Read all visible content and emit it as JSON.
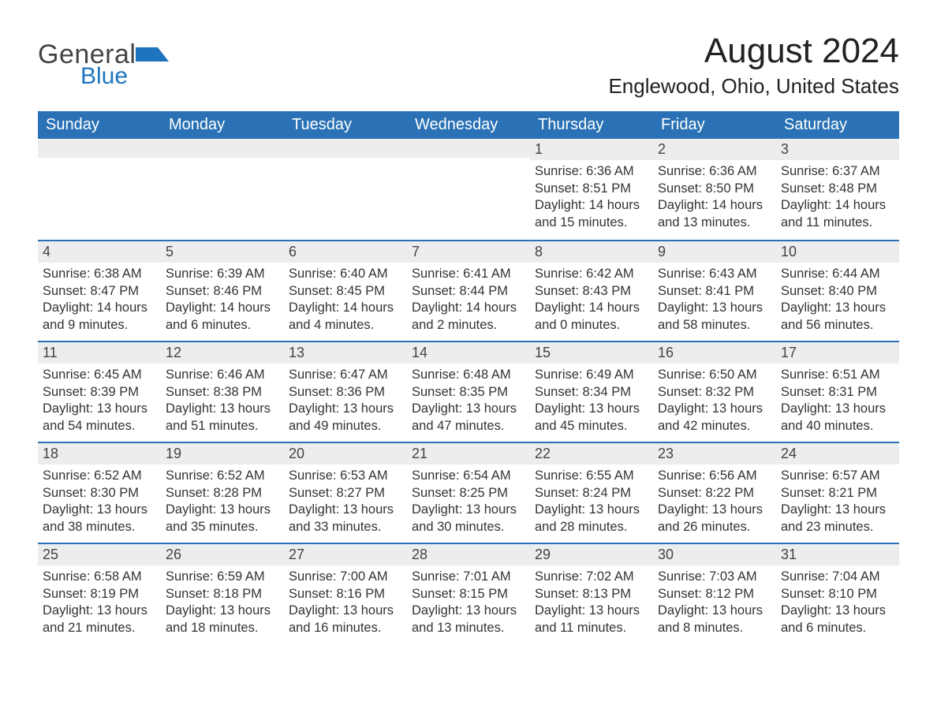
{
  "brand": {
    "part1": "General",
    "part2": "Blue",
    "accent": "#1f74bf",
    "shape_color": "#1f74bf"
  },
  "title": "August 2024",
  "location": "Englewood, Ohio, United States",
  "colors": {
    "header_bg": "#2a72b5",
    "header_text": "#ffffff",
    "daynum_bg": "#ededed",
    "week_border": "#2a72b5",
    "body_text": "#333333",
    "page_bg": "#ffffff"
  },
  "weekday_headers": [
    "Sunday",
    "Monday",
    "Tuesday",
    "Wednesday",
    "Thursday",
    "Friday",
    "Saturday"
  ],
  "weeks": [
    [
      {
        "day": "",
        "sunrise": "",
        "sunset": "",
        "daylight": ""
      },
      {
        "day": "",
        "sunrise": "",
        "sunset": "",
        "daylight": ""
      },
      {
        "day": "",
        "sunrise": "",
        "sunset": "",
        "daylight": ""
      },
      {
        "day": "",
        "sunrise": "",
        "sunset": "",
        "daylight": ""
      },
      {
        "day": "1",
        "sunrise": "Sunrise: 6:36 AM",
        "sunset": "Sunset: 8:51 PM",
        "daylight": "Daylight: 14 hours and 15 minutes."
      },
      {
        "day": "2",
        "sunrise": "Sunrise: 6:36 AM",
        "sunset": "Sunset: 8:50 PM",
        "daylight": "Daylight: 14 hours and 13 minutes."
      },
      {
        "day": "3",
        "sunrise": "Sunrise: 6:37 AM",
        "sunset": "Sunset: 8:48 PM",
        "daylight": "Daylight: 14 hours and 11 minutes."
      }
    ],
    [
      {
        "day": "4",
        "sunrise": "Sunrise: 6:38 AM",
        "sunset": "Sunset: 8:47 PM",
        "daylight": "Daylight: 14 hours and 9 minutes."
      },
      {
        "day": "5",
        "sunrise": "Sunrise: 6:39 AM",
        "sunset": "Sunset: 8:46 PM",
        "daylight": "Daylight: 14 hours and 6 minutes."
      },
      {
        "day": "6",
        "sunrise": "Sunrise: 6:40 AM",
        "sunset": "Sunset: 8:45 PM",
        "daylight": "Daylight: 14 hours and 4 minutes."
      },
      {
        "day": "7",
        "sunrise": "Sunrise: 6:41 AM",
        "sunset": "Sunset: 8:44 PM",
        "daylight": "Daylight: 14 hours and 2 minutes."
      },
      {
        "day": "8",
        "sunrise": "Sunrise: 6:42 AM",
        "sunset": "Sunset: 8:43 PM",
        "daylight": "Daylight: 14 hours and 0 minutes."
      },
      {
        "day": "9",
        "sunrise": "Sunrise: 6:43 AM",
        "sunset": "Sunset: 8:41 PM",
        "daylight": "Daylight: 13 hours and 58 minutes."
      },
      {
        "day": "10",
        "sunrise": "Sunrise: 6:44 AM",
        "sunset": "Sunset: 8:40 PM",
        "daylight": "Daylight: 13 hours and 56 minutes."
      }
    ],
    [
      {
        "day": "11",
        "sunrise": "Sunrise: 6:45 AM",
        "sunset": "Sunset: 8:39 PM",
        "daylight": "Daylight: 13 hours and 54 minutes."
      },
      {
        "day": "12",
        "sunrise": "Sunrise: 6:46 AM",
        "sunset": "Sunset: 8:38 PM",
        "daylight": "Daylight: 13 hours and 51 minutes."
      },
      {
        "day": "13",
        "sunrise": "Sunrise: 6:47 AM",
        "sunset": "Sunset: 8:36 PM",
        "daylight": "Daylight: 13 hours and 49 minutes."
      },
      {
        "day": "14",
        "sunrise": "Sunrise: 6:48 AM",
        "sunset": "Sunset: 8:35 PM",
        "daylight": "Daylight: 13 hours and 47 minutes."
      },
      {
        "day": "15",
        "sunrise": "Sunrise: 6:49 AM",
        "sunset": "Sunset: 8:34 PM",
        "daylight": "Daylight: 13 hours and 45 minutes."
      },
      {
        "day": "16",
        "sunrise": "Sunrise: 6:50 AM",
        "sunset": "Sunset: 8:32 PM",
        "daylight": "Daylight: 13 hours and 42 minutes."
      },
      {
        "day": "17",
        "sunrise": "Sunrise: 6:51 AM",
        "sunset": "Sunset: 8:31 PM",
        "daylight": "Daylight: 13 hours and 40 minutes."
      }
    ],
    [
      {
        "day": "18",
        "sunrise": "Sunrise: 6:52 AM",
        "sunset": "Sunset: 8:30 PM",
        "daylight": "Daylight: 13 hours and 38 minutes."
      },
      {
        "day": "19",
        "sunrise": "Sunrise: 6:52 AM",
        "sunset": "Sunset: 8:28 PM",
        "daylight": "Daylight: 13 hours and 35 minutes."
      },
      {
        "day": "20",
        "sunrise": "Sunrise: 6:53 AM",
        "sunset": "Sunset: 8:27 PM",
        "daylight": "Daylight: 13 hours and 33 minutes."
      },
      {
        "day": "21",
        "sunrise": "Sunrise: 6:54 AM",
        "sunset": "Sunset: 8:25 PM",
        "daylight": "Daylight: 13 hours and 30 minutes."
      },
      {
        "day": "22",
        "sunrise": "Sunrise: 6:55 AM",
        "sunset": "Sunset: 8:24 PM",
        "daylight": "Daylight: 13 hours and 28 minutes."
      },
      {
        "day": "23",
        "sunrise": "Sunrise: 6:56 AM",
        "sunset": "Sunset: 8:22 PM",
        "daylight": "Daylight: 13 hours and 26 minutes."
      },
      {
        "day": "24",
        "sunrise": "Sunrise: 6:57 AM",
        "sunset": "Sunset: 8:21 PM",
        "daylight": "Daylight: 13 hours and 23 minutes."
      }
    ],
    [
      {
        "day": "25",
        "sunrise": "Sunrise: 6:58 AM",
        "sunset": "Sunset: 8:19 PM",
        "daylight": "Daylight: 13 hours and 21 minutes."
      },
      {
        "day": "26",
        "sunrise": "Sunrise: 6:59 AM",
        "sunset": "Sunset: 8:18 PM",
        "daylight": "Daylight: 13 hours and 18 minutes."
      },
      {
        "day": "27",
        "sunrise": "Sunrise: 7:00 AM",
        "sunset": "Sunset: 8:16 PM",
        "daylight": "Daylight: 13 hours and 16 minutes."
      },
      {
        "day": "28",
        "sunrise": "Sunrise: 7:01 AM",
        "sunset": "Sunset: 8:15 PM",
        "daylight": "Daylight: 13 hours and 13 minutes."
      },
      {
        "day": "29",
        "sunrise": "Sunrise: 7:02 AM",
        "sunset": "Sunset: 8:13 PM",
        "daylight": "Daylight: 13 hours and 11 minutes."
      },
      {
        "day": "30",
        "sunrise": "Sunrise: 7:03 AM",
        "sunset": "Sunset: 8:12 PM",
        "daylight": "Daylight: 13 hours and 8 minutes."
      },
      {
        "day": "31",
        "sunrise": "Sunrise: 7:04 AM",
        "sunset": "Sunset: 8:10 PM",
        "daylight": "Daylight: 13 hours and 6 minutes."
      }
    ]
  ]
}
